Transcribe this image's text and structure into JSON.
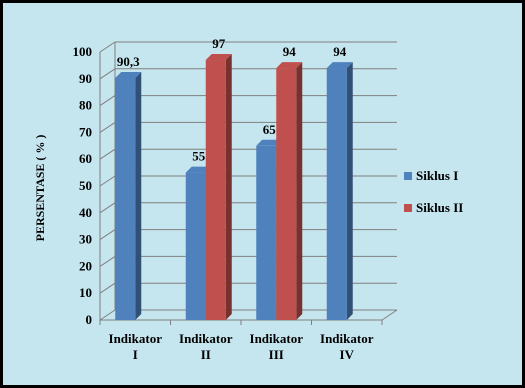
{
  "chart_data": {
    "type": "bar",
    "ylabel": "PERSENTASE ( % )",
    "ylim": [
      0,
      100
    ],
    "yticks": [
      "0",
      "10",
      "20",
      "30",
      "40",
      "50",
      "60",
      "70",
      "80",
      "90",
      "100"
    ],
    "categories": [
      {
        "line1": "Indikator",
        "line2": "I"
      },
      {
        "line1": "Indikator",
        "line2": "II"
      },
      {
        "line1": "Indikator",
        "line2": "III"
      },
      {
        "line1": "Indikator",
        "line2": "IV"
      }
    ],
    "series": [
      {
        "name": "Siklus I",
        "color": "#4f81bd",
        "values": [
          90.3,
          55,
          65,
          94
        ],
        "labels": [
          "90,3",
          "55",
          "65",
          "94"
        ]
      },
      {
        "name": "Siklus II",
        "color": "#c0504d",
        "values": [
          null,
          97,
          94,
          null
        ],
        "labels": [
          "",
          "97",
          "94",
          ""
        ]
      }
    ],
    "legend_position": "right",
    "grid": true
  }
}
